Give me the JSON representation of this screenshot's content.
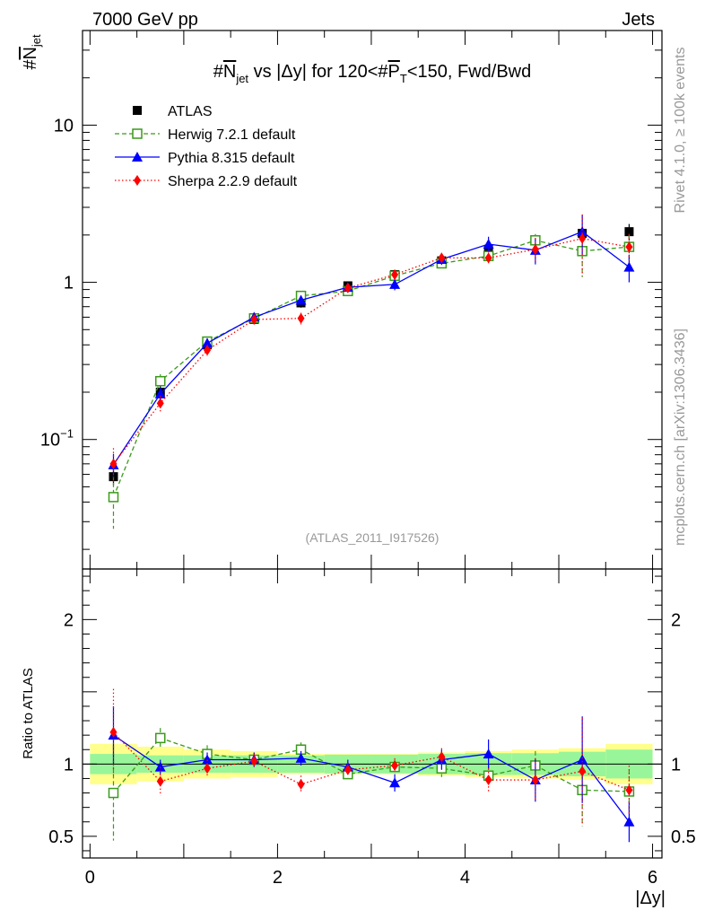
{
  "header": {
    "left": "7000 GeV pp",
    "right": "Jets"
  },
  "side_labels": {
    "rivet": "Rivet 4.1.0, ≥ 100k events",
    "mcplots": "mcplots.cern.ch [arXiv:1306.3436]"
  },
  "colors": {
    "atlas": "#000000",
    "herwig": "#3a9a1a",
    "pythia": "#0000ff",
    "sherpa": "#ff0000",
    "band_inner": "#99f599",
    "band_outer": "#ffff8c"
  },
  "chart_data": [
    {
      "type": "line",
      "panel": "main",
      "title": "#N_jet vs |Δy| for 120<#P_T<150, Fwd/Bwd",
      "title_parts": {
        "a": "#",
        "b": "N",
        "c": "jet",
        "d": " vs |Δy| for 120<#",
        "e": "P",
        "f": "T",
        "g": "<150, Fwd/Bwd"
      },
      "ylabel": {
        "a": "#",
        "b": "N",
        "c": "jet"
      },
      "yscale": "log",
      "ylim": [
        0.015,
        40
      ],
      "xlim": [
        -0.08,
        6.1
      ],
      "y_ticks": [
        {
          "value": 10,
          "label": "10"
        },
        {
          "value": 1,
          "label": "1"
        },
        {
          "value": 0.1,
          "base": "10",
          "exp": "−1"
        }
      ],
      "watermark": "(ATLAS_2011_I917526)",
      "x": [
        0.25,
        0.75,
        1.25,
        1.75,
        2.25,
        2.75,
        3.25,
        3.75,
        4.25,
        4.75,
        5.25,
        5.75
      ],
      "series": [
        {
          "name": "ATLAS",
          "marker": "square-filled",
          "values": [
            0.058,
            0.2,
            0.4,
            0.58,
            0.74,
            0.95,
            1.12,
            1.37,
            1.62,
            1.85,
            2.05,
            2.1
          ],
          "err": [
            0.007,
            0.02,
            0.03,
            0.04,
            0.05,
            0.06,
            0.07,
            0.09,
            0.12,
            0.15,
            0.2,
            0.25
          ]
        },
        {
          "name": "Herwig 7.2.1 default",
          "marker": "square-open",
          "dash": "dashed",
          "values": [
            0.043,
            0.235,
            0.42,
            0.59,
            0.82,
            0.88,
            1.1,
            1.32,
            1.47,
            1.85,
            1.58,
            1.68
          ],
          "err": [
            0.016,
            0.025,
            0.03,
            0.04,
            0.05,
            0.05,
            0.07,
            0.09,
            0.12,
            0.18,
            0.5,
            0.35
          ]
        },
        {
          "name": "Pythia 8.315 default",
          "marker": "triangle",
          "dash": "solid",
          "values": [
            0.069,
            0.195,
            0.41,
            0.6,
            0.77,
            0.93,
            0.97,
            1.4,
            1.75,
            1.6,
            2.1,
            1.25
          ],
          "err": [
            0.012,
            0.02,
            0.03,
            0.04,
            0.05,
            0.06,
            0.08,
            0.11,
            0.2,
            0.3,
            0.6,
            0.25
          ]
        },
        {
          "name": "Sherpa 2.2.9 default",
          "marker": "diamond",
          "dash": "dotted",
          "values": [
            0.07,
            0.17,
            0.37,
            0.58,
            0.59,
            0.92,
            1.12,
            1.43,
            1.43,
            1.62,
            1.9,
            1.68
          ],
          "err": [
            0.018,
            0.02,
            0.03,
            0.04,
            0.05,
            0.06,
            0.08,
            0.11,
            0.15,
            0.3,
            0.8,
            0.35
          ]
        }
      ]
    },
    {
      "type": "line",
      "panel": "ratio",
      "ylabel": "Ratio to ATLAS",
      "xlabel": "|Δy|",
      "yscale": "linear",
      "ylim": [
        0.35,
        2.35
      ],
      "xlim": [
        -0.08,
        6.1
      ],
      "y_ticks": [
        {
          "value": 2,
          "label": "2"
        },
        {
          "value": 1,
          "label": "1"
        },
        {
          "value": 0.5,
          "label": "0.5"
        }
      ],
      "x_ticks": [
        {
          "value": 0,
          "label": "0"
        },
        {
          "value": 2,
          "label": "2"
        },
        {
          "value": 4,
          "label": "4"
        },
        {
          "value": 6,
          "label": "6"
        }
      ],
      "band_edges": [
        0,
        0.5,
        1,
        1.5,
        2,
        2.5,
        3,
        3.5,
        4,
        4.5,
        5,
        5.5,
        6
      ],
      "band_inner": [
        0.07,
        0.06,
        0.06,
        0.06,
        0.06,
        0.065,
        0.065,
        0.07,
        0.075,
        0.075,
        0.085,
        0.1
      ],
      "band_outer": [
        0.14,
        0.12,
        0.1,
        0.09,
        0.07,
        0.07,
        0.07,
        0.08,
        0.09,
        0.1,
        0.11,
        0.14
      ],
      "x": [
        0.25,
        0.75,
        1.25,
        1.75,
        2.25,
        2.75,
        3.25,
        3.75,
        4.25,
        4.75,
        5.25,
        5.75
      ],
      "series": [
        {
          "name": "Herwig 7.2.1 default",
          "marker": "square-open",
          "dash": "dashed",
          "values": [
            0.8,
            1.18,
            1.07,
            1.03,
            1.1,
            0.93,
            0.98,
            0.97,
            0.92,
            0.99,
            0.82,
            0.81
          ],
          "err": [
            0.33,
            0.07,
            0.06,
            0.05,
            0.05,
            0.05,
            0.05,
            0.06,
            0.07,
            0.1,
            0.25,
            0.15
          ]
        },
        {
          "name": "Pythia 8.315 default",
          "marker": "triangle",
          "dash": "solid",
          "values": [
            1.2,
            0.98,
            1.03,
            1.03,
            1.04,
            0.98,
            0.87,
            1.03,
            1.07,
            0.89,
            1.03,
            0.6
          ],
          "err": [
            0.2,
            0.05,
            0.05,
            0.05,
            0.05,
            0.05,
            0.06,
            0.07,
            0.1,
            0.15,
            0.3,
            0.14
          ]
        },
        {
          "name": "Sherpa 2.2.9 default",
          "marker": "diamond",
          "dash": "dotted",
          "values": [
            1.22,
            0.88,
            0.97,
            1.02,
            0.86,
            0.96,
            0.99,
            1.05,
            0.89,
            0.89,
            0.95,
            0.82
          ],
          "err": [
            0.3,
            0.1,
            0.06,
            0.05,
            0.06,
            0.05,
            0.05,
            0.06,
            0.08,
            0.15,
            0.37,
            0.17
          ]
        }
      ]
    }
  ]
}
